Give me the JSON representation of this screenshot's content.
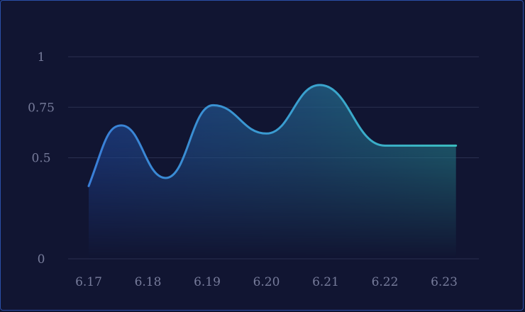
{
  "chart_data": {
    "type": "area",
    "x": [
      "6.17",
      "6.18",
      "6.19",
      "6.20",
      "6.21",
      "6.22",
      "6.23"
    ],
    "y_ticks": [
      "0",
      "0.5",
      "0.75",
      "1"
    ],
    "ylim": [
      0,
      1
    ],
    "grid": true,
    "legend": "none",
    "series": [
      {
        "points": [
          [
            0.0,
            0.36
          ],
          [
            0.55,
            0.66
          ],
          [
            1.3,
            0.4
          ],
          [
            2.1,
            0.76
          ],
          [
            3.0,
            0.62
          ],
          [
            3.9,
            0.86
          ],
          [
            5.0,
            0.56
          ],
          [
            6.2,
            0.56
          ]
        ]
      }
    ],
    "colors": {
      "line_start": "#3a7fd8",
      "line_end": "#3bbdc0",
      "grid": "#2a3050",
      "tick_text": "#767b9a"
    }
  }
}
